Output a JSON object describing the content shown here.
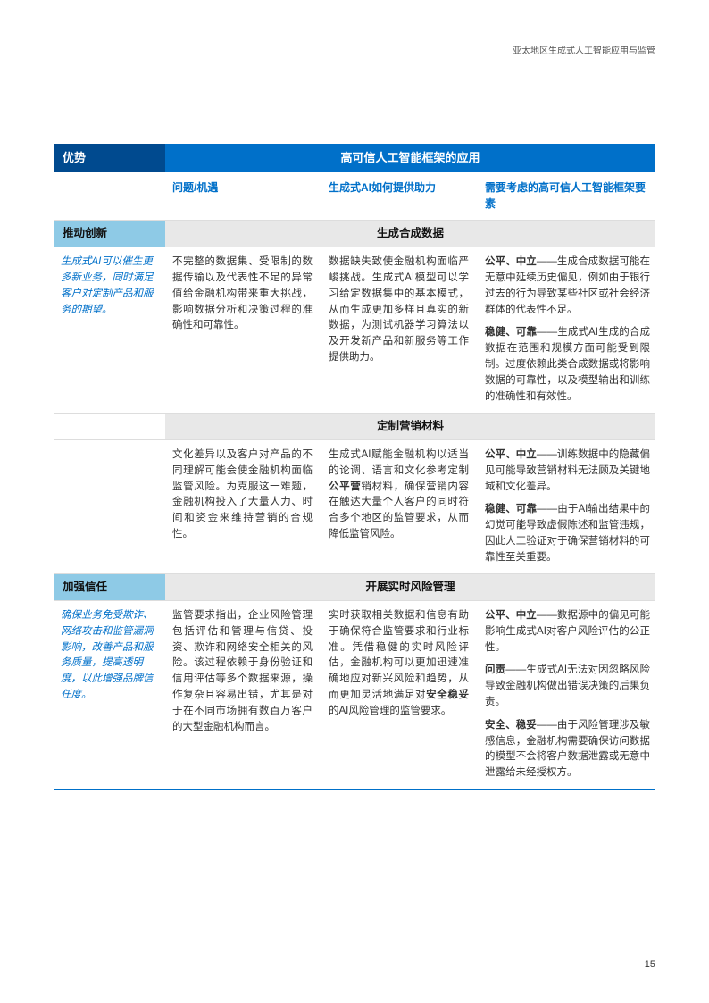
{
  "header": "亚太地区生成式人工智能应用与监管",
  "pageNumber": "15",
  "mainHeader": {
    "left": "优势",
    "right": "高可信人工智能框架的应用"
  },
  "subHeaders": {
    "col1": "问题/机遇",
    "col2": "生成式AI如何提供助力",
    "col3": "需要考虑的高可信人工智能框架要素"
  },
  "sections": [
    {
      "id": "innovation",
      "label": "推动创新",
      "labelDesc": "生成式AI可以催生更多新业务，同时满足客户对定制产品和服务的期望。",
      "topics": [
        {
          "title": "生成合成数据",
          "col1": "不完整的数据集、受限制的数据传输以及代表性不足的异常值给金融机构带来重大挑战，影响数据分析和决策过程的准确性和可靠性。",
          "col2": "数据缺失致使金融机构面临严峻挑战。生成式AI模型可以学习给定数据集中的基本模式，从而生成更加多样且真实的新数据，为测试机器学习算法以及开发新产品和新服务等工作提供助力。",
          "col3_paras": [
            {
              "bold": "公平、中立",
              "text": "——生成合成数据可能在无意中延续历史偏见，例如由于银行过去的行为导致某些社区或社会经济群体的代表性不足。"
            },
            {
              "bold": "稳健、可靠",
              "text": "——生成式AI生成的合成数据在范围和规模方面可能受到限制。过度依赖此类合成数据或将影响数据的可靠性，以及模型输出和训练的准确性和有效性。"
            }
          ]
        },
        {
          "title": "定制营销材料",
          "col1": "文化差异以及客户对产品的不同理解可能会使金融机构面临监管风险。为克服这一难题，金融机构投入了大量人力、时间和资金来维持营销的合规性。",
          "col2_segments": [
            {
              "text": "生成式AI赋能金融机构以适当的论调、语言和文化参考定制"
            },
            {
              "text": "公平营",
              "bold": true
            },
            {
              "text": "销材料，确保营销内容在触达大量个人客户的同时符合多个地区的监管要求，从而降低监管风险。"
            }
          ],
          "col3_paras": [
            {
              "bold": "公平、中立",
              "text": "——训练数据中的隐藏偏见可能导致营销材料无法顾及关键地域和文化差异。"
            },
            {
              "bold": "稳健、可靠",
              "text": "——由于AI输出结果中的幻觉可能导致虚假陈述和监管违规，因此人工验证对于确保营销材料的可靠性至关重要。"
            }
          ]
        }
      ]
    },
    {
      "id": "trust",
      "label": "加强信任",
      "labelDesc": "确保业务免受欺诈、网络攻击和监管漏洞影响，改善产品和服务质量，提高透明度，以此增强品牌信任度。",
      "topics": [
        {
          "title": "开展实时风险管理",
          "col1": "监管要求指出，企业风险管理包括评估和管理与信贷、投资、欺诈和网络安全相关的风险。该过程依赖于身份验证和信用评估等多个数据来源，操作复杂且容易出错，尤其是对于在不同市场拥有数百万客户的大型金融机构而言。",
          "col2_segments": [
            {
              "text": "实时获取相关数据和信息有助于确保符合监管要求和行业标准。凭借稳健的实时风险评估，金融机构可以更加迅速准确地应对新兴风险和趋势，从而更加灵活地满足对"
            },
            {
              "text": "安全稳妥",
              "bold": true
            },
            {
              "text": "的AI风险管理的监管要求。"
            }
          ],
          "col3_paras": [
            {
              "bold": "公平、中立",
              "text": "——数据源中的偏见可能影响生成式AI对客户风险评估的公正性。"
            },
            {
              "bold": "问责",
              "text": "——生成式AI无法对因忽略风险导致金融机构做出错误决策的后果负责。"
            },
            {
              "bold": "安全、稳妥",
              "text": "——由于风险管理涉及敏感信息，金融机构需要确保访问数据的模型不会将客户数据泄露或无意中泄露给未经授权方。"
            }
          ]
        }
      ]
    }
  ]
}
